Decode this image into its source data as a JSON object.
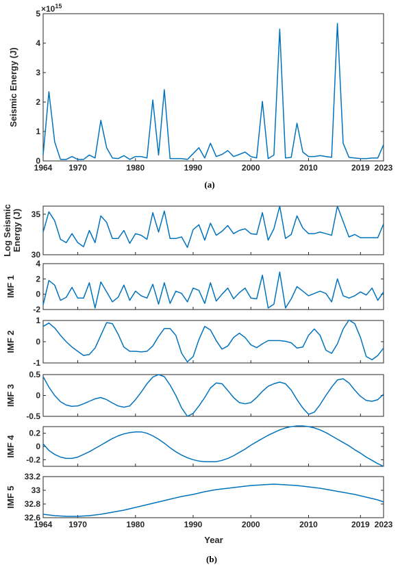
{
  "colors": {
    "series": "#0072BD",
    "axis": "#262626"
  },
  "captions": {
    "a": "(a)",
    "b": "(b)"
  },
  "xaxis_label": "Year",
  "exponent_label": "×10",
  "exponent_power": "15",
  "chart_data": [
    {
      "id": "energy",
      "type": "line",
      "ylabel": [
        "Seismic Energy (J)"
      ],
      "xlim": [
        1964,
        2023
      ],
      "ylim": [
        0,
        5
      ],
      "yticks": [
        0,
        1,
        2,
        3,
        4,
        5
      ],
      "xticks": [
        1964,
        1970,
        1980,
        1990,
        2000,
        2010,
        2019,
        2023
      ],
      "series": [
        {
          "x": [
            1964,
            1965,
            1966,
            1967,
            1968,
            1969,
            1970,
            1971,
            1972,
            1973,
            1974,
            1975,
            1976,
            1977,
            1978,
            1979,
            1980,
            1981,
            1982,
            1983,
            1984,
            1985,
            1986,
            1987,
            1988,
            1989,
            1990,
            1991,
            1992,
            1993,
            1994,
            1995,
            1996,
            1997,
            1998,
            1999,
            2000,
            2001,
            2002,
            2003,
            2004,
            2005,
            2006,
            2007,
            2008,
            2009,
            2010,
            2011,
            2012,
            2013,
            2014,
            2015,
            2016,
            2017,
            2018,
            2019,
            2020,
            2021,
            2022,
            2023
          ],
          "y": [
            0.2,
            2.35,
            0.65,
            0.05,
            0.05,
            0.15,
            0.05,
            0.05,
            0.2,
            0.1,
            1.38,
            0.45,
            0.1,
            0.08,
            0.18,
            0.05,
            0.15,
            0.15,
            0.1,
            2.07,
            0.2,
            2.42,
            0.08,
            0.08,
            0.08,
            0.05,
            0.25,
            0.45,
            0.1,
            0.6,
            0.15,
            0.22,
            0.35,
            0.15,
            0.22,
            0.3,
            0.15,
            0.1,
            2.02,
            0.08,
            0.2,
            4.48,
            0.1,
            0.12,
            1.28,
            0.3,
            0.15,
            0.15,
            0.18,
            0.15,
            0.12,
            4.67,
            0.6,
            0.12,
            0.1,
            0.08,
            0.08,
            0.1,
            0.1,
            0.55
          ]
        }
      ]
    },
    {
      "id": "log",
      "type": "line",
      "ylabel": [
        "Log Seismic",
        "Energy (J)"
      ],
      "xlim": [
        1964,
        2023
      ],
      "ylim": [
        30,
        36
      ],
      "yticks": [
        30,
        35
      ],
      "series": [
        {
          "x": [
            1964,
            1965,
            1966,
            1967,
            1968,
            1969,
            1970,
            1971,
            1972,
            1973,
            1974,
            1975,
            1976,
            1977,
            1978,
            1979,
            1980,
            1981,
            1982,
            1983,
            1984,
            1985,
            1986,
            1987,
            1988,
            1989,
            1990,
            1991,
            1992,
            1993,
            1994,
            1995,
            1996,
            1997,
            1998,
            1999,
            2000,
            2001,
            2002,
            2003,
            2004,
            2005,
            2006,
            2007,
            2008,
            2009,
            2010,
            2011,
            2012,
            2013,
            2014,
            2015,
            2016,
            2017,
            2018,
            2019,
            2020,
            2021,
            2022,
            2023
          ],
          "y": [
            32.8,
            35.3,
            34.2,
            31.9,
            31.5,
            32.6,
            31.5,
            31.0,
            33.0,
            31.5,
            34.8,
            34.0,
            32.0,
            32.0,
            33.0,
            31.4,
            32.6,
            32.4,
            31.9,
            35.2,
            32.8,
            35.4,
            32.0,
            32.0,
            32.2,
            30.9,
            33.1,
            33.7,
            31.8,
            33.9,
            32.4,
            32.9,
            33.6,
            32.6,
            33.0,
            33.2,
            32.6,
            32.5,
            35.2,
            31.8,
            33.2,
            36.0,
            32.0,
            32.5,
            34.8,
            33.3,
            32.6,
            32.6,
            32.8,
            32.6,
            32.4,
            36.0,
            34.1,
            32.2,
            32.5,
            32.1,
            32.1,
            32.1,
            32.1,
            33.8
          ]
        }
      ]
    },
    {
      "id": "imf1",
      "type": "line",
      "ylabel": [
        "IMF 1"
      ],
      "xlim": [
        1964,
        2023
      ],
      "ylim": [
        -2,
        4
      ],
      "yticks": [
        -2,
        0,
        2,
        4
      ],
      "series": [
        {
          "x": [
            1964,
            1965,
            1966,
            1967,
            1968,
            1969,
            1970,
            1971,
            1972,
            1973,
            1974,
            1975,
            1976,
            1977,
            1978,
            1979,
            1980,
            1981,
            1982,
            1983,
            1984,
            1985,
            1986,
            1987,
            1988,
            1989,
            1990,
            1991,
            1992,
            1993,
            1994,
            1995,
            1996,
            1997,
            1998,
            1999,
            2000,
            2001,
            2002,
            2003,
            2004,
            2005,
            2006,
            2007,
            2008,
            2009,
            2010,
            2011,
            2012,
            2013,
            2014,
            2015,
            2016,
            2017,
            2018,
            2019,
            2020,
            2021,
            2022,
            2023
          ],
          "y": [
            -1.4,
            1.8,
            1.2,
            -0.8,
            -0.4,
            0.9,
            -0.5,
            -0.5,
            1.5,
            -1.8,
            1.6,
            0.3,
            -1.0,
            -0.4,
            1.2,
            -0.8,
            0.4,
            -0.2,
            -0.5,
            1.3,
            -1.3,
            1.5,
            -1.2,
            0.4,
            0.1,
            -1.0,
            0.8,
            0.5,
            -1.2,
            1.5,
            -0.9,
            0.0,
            0.8,
            -0.6,
            0.2,
            0.8,
            -0.5,
            -0.6,
            2.5,
            -1.8,
            -1.3,
            2.9,
            -1.8,
            -0.6,
            1.0,
            0.4,
            -0.2,
            0.1,
            0.4,
            0.1,
            -1.0,
            2.0,
            -0.2,
            -0.5,
            -0.2,
            0.3,
            -0.1,
            0.8,
            -0.8,
            0.3
          ]
        }
      ]
    },
    {
      "id": "imf2",
      "type": "line",
      "ylabel": [
        "IMF 2"
      ],
      "xlim": [
        1964,
        2023
      ],
      "ylim": [
        -1,
        1
      ],
      "yticks": [
        -1,
        0,
        1
      ],
      "series": [
        {
          "x": [
            1964,
            1965,
            1966,
            1967,
            1968,
            1969,
            1970,
            1971,
            1972,
            1973,
            1974,
            1975,
            1976,
            1977,
            1978,
            1979,
            1980,
            1981,
            1982,
            1983,
            1984,
            1985,
            1986,
            1987,
            1988,
            1989,
            1990,
            1991,
            1992,
            1993,
            1994,
            1995,
            1996,
            1997,
            1998,
            1999,
            2000,
            2001,
            2002,
            2003,
            2004,
            2005,
            2006,
            2007,
            2008,
            2009,
            2010,
            2011,
            2012,
            2013,
            2014,
            2015,
            2016,
            2017,
            2018,
            2019,
            2020,
            2021,
            2022,
            2023
          ],
          "y": [
            0.72,
            0.88,
            0.65,
            0.3,
            0.0,
            -0.25,
            -0.45,
            -0.65,
            -0.6,
            -0.3,
            0.3,
            0.9,
            0.85,
            0.35,
            -0.25,
            -0.45,
            -0.45,
            -0.48,
            -0.45,
            -0.2,
            0.25,
            0.62,
            0.62,
            0.3,
            -0.55,
            -0.95,
            -0.7,
            0.1,
            0.72,
            0.55,
            0.05,
            -0.35,
            -0.2,
            0.2,
            0.4,
            0.2,
            -0.15,
            -0.28,
            -0.1,
            0.05,
            0.05,
            0.05,
            0.02,
            -0.05,
            -0.3,
            -0.25,
            0.3,
            0.6,
            0.3,
            -0.4,
            -0.55,
            -0.1,
            0.6,
            1.02,
            0.85,
            0.2,
            -0.7,
            -0.85,
            -0.65,
            -0.3
          ]
        }
      ]
    },
    {
      "id": "imf3",
      "type": "line",
      "ylabel": [
        "IMF 3"
      ],
      "xlim": [
        1964,
        2023
      ],
      "ylim": [
        -0.5,
        0.5
      ],
      "yticks": [
        -0.5,
        0,
        0.5
      ],
      "series": [
        {
          "x": [
            1964,
            1965,
            1966,
            1967,
            1968,
            1969,
            1970,
            1971,
            1972,
            1973,
            1974,
            1975,
            1976,
            1977,
            1978,
            1979,
            1980,
            1981,
            1982,
            1983,
            1984,
            1985,
            1986,
            1987,
            1988,
            1989,
            1990,
            1991,
            1992,
            1993,
            1994,
            1995,
            1996,
            1997,
            1998,
            1999,
            2000,
            2001,
            2002,
            2003,
            2004,
            2005,
            2006,
            2007,
            2008,
            2009,
            2010,
            2011,
            2012,
            2013,
            2014,
            2015,
            2016,
            2017,
            2018,
            2019,
            2020,
            2021,
            2022,
            2023
          ],
          "y": [
            0.45,
            0.2,
            0.0,
            -0.15,
            -0.23,
            -0.26,
            -0.25,
            -0.2,
            -0.14,
            -0.08,
            -0.05,
            -0.1,
            -0.18,
            -0.25,
            -0.28,
            -0.25,
            -0.1,
            0.08,
            0.28,
            0.44,
            0.5,
            0.45,
            0.25,
            0.0,
            -0.3,
            -0.5,
            -0.43,
            -0.25,
            -0.05,
            0.18,
            0.3,
            0.28,
            0.12,
            -0.05,
            -0.17,
            -0.2,
            -0.17,
            -0.05,
            0.1,
            0.22,
            0.28,
            0.32,
            0.28,
            0.13,
            -0.1,
            -0.3,
            -0.45,
            -0.4,
            -0.22,
            0.0,
            0.2,
            0.37,
            0.4,
            0.3,
            0.13,
            -0.02,
            -0.12,
            -0.14,
            -0.1,
            0.03
          ]
        }
      ]
    },
    {
      "id": "imf4",
      "type": "line",
      "ylabel": [
        "IMF 4"
      ],
      "xlim": [
        1964,
        2023
      ],
      "ylim": [
        -0.3,
        0.3
      ],
      "yticks": [
        -0.2,
        0,
        0.2
      ],
      "series": [
        {
          "x": [
            1964,
            1965,
            1966,
            1967,
            1968,
            1969,
            1970,
            1971,
            1972,
            1973,
            1974,
            1975,
            1976,
            1977,
            1978,
            1979,
            1980,
            1981,
            1982,
            1983,
            1984,
            1985,
            1986,
            1987,
            1988,
            1989,
            1990,
            1991,
            1992,
            1993,
            1994,
            1995,
            1996,
            1997,
            1998,
            1999,
            2000,
            2001,
            2002,
            2003,
            2004,
            2005,
            2006,
            2007,
            2008,
            2009,
            2010,
            2011,
            2012,
            2013,
            2014,
            2015,
            2016,
            2017,
            2018,
            2019,
            2020,
            2021,
            2022,
            2023
          ],
          "y": [
            0.04,
            -0.06,
            -0.12,
            -0.16,
            -0.18,
            -0.18,
            -0.16,
            -0.12,
            -0.08,
            -0.03,
            0.02,
            0.07,
            0.12,
            0.16,
            0.19,
            0.21,
            0.22,
            0.22,
            0.2,
            0.16,
            0.11,
            0.05,
            -0.02,
            -0.08,
            -0.13,
            -0.17,
            -0.2,
            -0.22,
            -0.23,
            -0.23,
            -0.23,
            -0.21,
            -0.18,
            -0.14,
            -0.09,
            -0.04,
            0.02,
            0.07,
            0.12,
            0.17,
            0.21,
            0.25,
            0.28,
            0.3,
            0.31,
            0.31,
            0.3,
            0.28,
            0.25,
            0.21,
            0.16,
            0.11,
            0.06,
            0.01,
            -0.05,
            -0.1,
            -0.16,
            -0.21,
            -0.26,
            -0.3
          ]
        }
      ]
    },
    {
      "id": "imf5",
      "type": "line",
      "ylabel": [
        "IMF 5"
      ],
      "xlim": [
        1964,
        2023
      ],
      "ylim": [
        32.6,
        33.2
      ],
      "yticks": [
        32.6,
        32.8,
        33,
        33.2
      ],
      "xticks": [
        1964,
        1970,
        1980,
        1990,
        2000,
        2010,
        2019,
        2023
      ],
      "series": [
        {
          "x": [
            1964,
            1966,
            1968,
            1970,
            1972,
            1974,
            1976,
            1978,
            1980,
            1982,
            1984,
            1986,
            1988,
            1990,
            1992,
            1994,
            1996,
            1998,
            2000,
            2002,
            2004,
            2006,
            2008,
            2010,
            2012,
            2014,
            2016,
            2018,
            2020,
            2022,
            2023
          ],
          "y": [
            32.65,
            32.63,
            32.62,
            32.62,
            32.63,
            32.65,
            32.68,
            32.71,
            32.75,
            32.79,
            32.83,
            32.87,
            32.91,
            32.94,
            32.98,
            33.01,
            33.03,
            33.05,
            33.07,
            33.08,
            33.09,
            33.08,
            33.07,
            33.05,
            33.03,
            33.0,
            32.97,
            32.94,
            32.9,
            32.86,
            32.83
          ]
        }
      ]
    }
  ]
}
